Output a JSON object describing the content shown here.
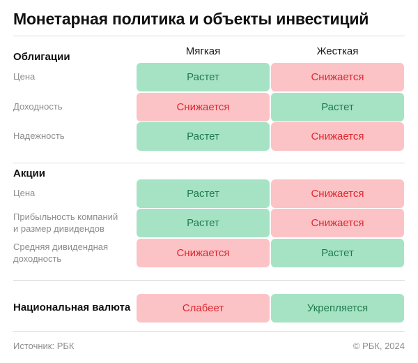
{
  "title": "Монетарная политика и объекты инвестиций",
  "columns": [
    "Мягкая",
    "Жесткая"
  ],
  "sections": {
    "bonds": "Облигации",
    "stocks": "Акции",
    "currency": "Национальная валюта"
  },
  "rows": [
    {
      "label": "Цена",
      "cells": [
        {
          "text": "Растет",
          "tone": "up"
        },
        {
          "text": "Снижается",
          "tone": "down"
        }
      ]
    },
    {
      "label": "Доходность",
      "cells": [
        {
          "text": "Снижается",
          "tone": "down"
        },
        {
          "text": "Растет",
          "tone": "up"
        }
      ]
    },
    {
      "label": "Надежность",
      "cells": [
        {
          "text": "Растет",
          "tone": "up"
        },
        {
          "text": "Снижается",
          "tone": "down"
        }
      ]
    },
    {
      "label": "Цена",
      "cells": [
        {
          "text": "Растет",
          "tone": "up"
        },
        {
          "text": "Снижается",
          "tone": "down"
        }
      ]
    },
    {
      "label_line1": "Прибыльность компаний",
      "label_line2": "и размер дивидендов",
      "cells": [
        {
          "text": "Растет",
          "tone": "up"
        },
        {
          "text": "Снижается",
          "tone": "down"
        }
      ]
    },
    {
      "label_line1": "Средняя дивидендная",
      "label_line2": "доходность",
      "cells": [
        {
          "text": "Снижается",
          "tone": "down"
        },
        {
          "text": "Растет",
          "tone": "up"
        }
      ]
    },
    {
      "cells": [
        {
          "text": "Слабеет",
          "tone": "down"
        },
        {
          "text": "Укрепляется",
          "tone": "up"
        }
      ]
    }
  ],
  "colors": {
    "up_bg": "#a6e3c4",
    "up_text": "#1f7a4e",
    "down_bg": "#fcc3c6",
    "down_text": "#e0262f"
  },
  "footer": {
    "source": "Источник: РБК",
    "copyright": "© РБК, 2024"
  }
}
